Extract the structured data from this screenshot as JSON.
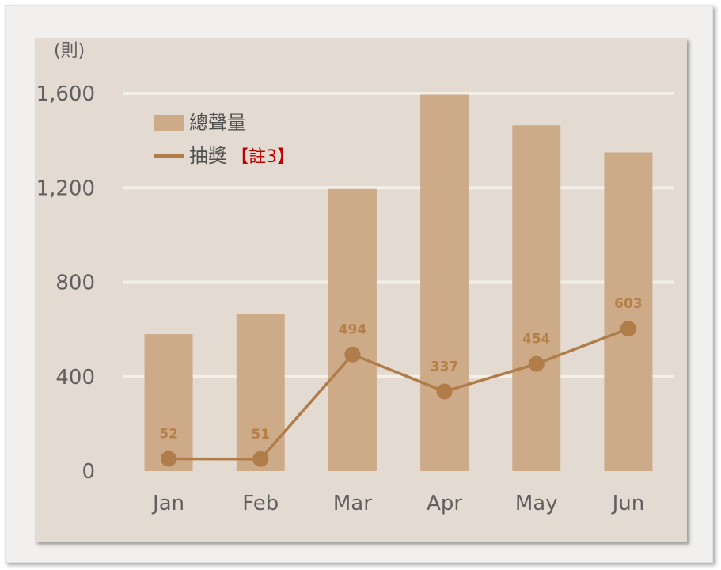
{
  "chart_data": {
    "type": "bar",
    "unit_label": "(則)",
    "categories": [
      "Jan",
      "Feb",
      "Mar",
      "Apr",
      "May",
      "Jun"
    ],
    "ylim": [
      0,
      1600
    ],
    "yticks": [
      "0",
      "400",
      "800",
      "1,200",
      "1,600"
    ],
    "grid": true,
    "legend_position": "top-left",
    "series": [
      {
        "name": "總聲量",
        "kind": "bar",
        "color": "#cdab89",
        "values": [
          580,
          665,
          1195,
          1595,
          1465,
          1350
        ]
      },
      {
        "name": "抽獎",
        "note": "【註3】",
        "kind": "line",
        "color": "#b07c49",
        "values": [
          52,
          51,
          494,
          337,
          454,
          603
        ],
        "labels": [
          "52",
          "51",
          "494",
          "337",
          "454",
          "603"
        ]
      }
    ]
  }
}
